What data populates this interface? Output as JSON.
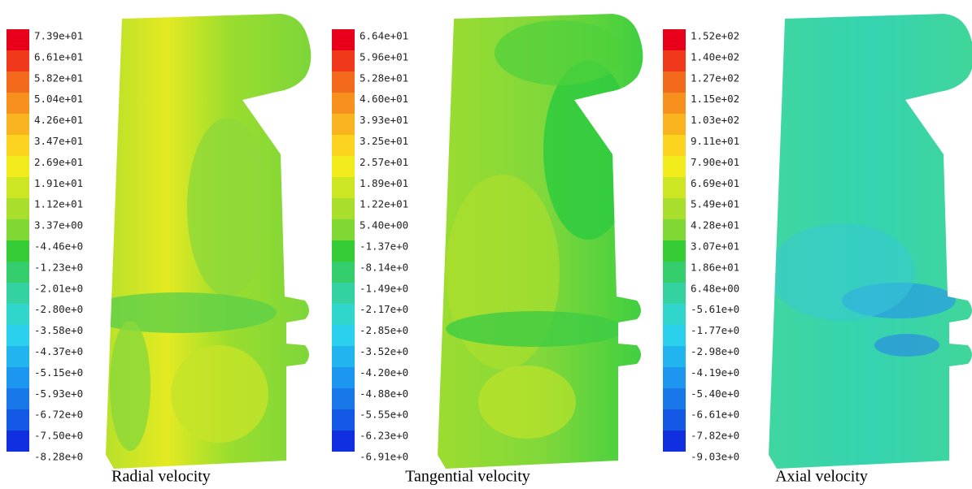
{
  "panels": [
    {
      "caption": "Radial velocity",
      "labels": [
        "7.39e+01",
        "6.61e+01",
        "5.82e+01",
        "5.04e+01",
        "4.26e+01",
        "3.47e+01",
        "2.69e+01",
        "1.91e+01",
        "1.12e+01",
        "3.37e+00",
        "-4.46e+0",
        "-1.23e+0",
        "-2.01e+0",
        "-2.80e+0",
        "-3.58e+0",
        "-4.37e+0",
        "-5.15e+0",
        "-5.93e+0",
        "-6.72e+0",
        "-7.50e+0",
        "-8.28e+0"
      ]
    },
    {
      "caption": "Tangential velocity",
      "labels": [
        "6.64e+01",
        "5.96e+01",
        "5.28e+01",
        "4.60e+01",
        "3.93e+01",
        "3.25e+01",
        "2.57e+01",
        "1.89e+01",
        "1.22e+01",
        "5.40e+00",
        "-1.37e+0",
        "-8.14e+0",
        "-1.49e+0",
        "-2.17e+0",
        "-2.85e+0",
        "-3.52e+0",
        "-4.20e+0",
        "-4.88e+0",
        "-5.55e+0",
        "-6.23e+0",
        "-6.91e+0"
      ]
    },
    {
      "caption": "Axial velocity",
      "labels": [
        "1.52e+02",
        "1.40e+02",
        "1.27e+02",
        "1.15e+02",
        "1.03e+02",
        "9.11e+01",
        "7.90e+01",
        "6.69e+01",
        "5.49e+01",
        "4.28e+01",
        "3.07e+01",
        "1.86e+01",
        "6.48e+00",
        "-5.61e+0",
        "-1.77e+0",
        "-2.98e+0",
        "-4.19e+0",
        "-5.40e+0",
        "-6.61e+0",
        "-7.82e+0",
        "-9.03e+0"
      ]
    }
  ]
}
